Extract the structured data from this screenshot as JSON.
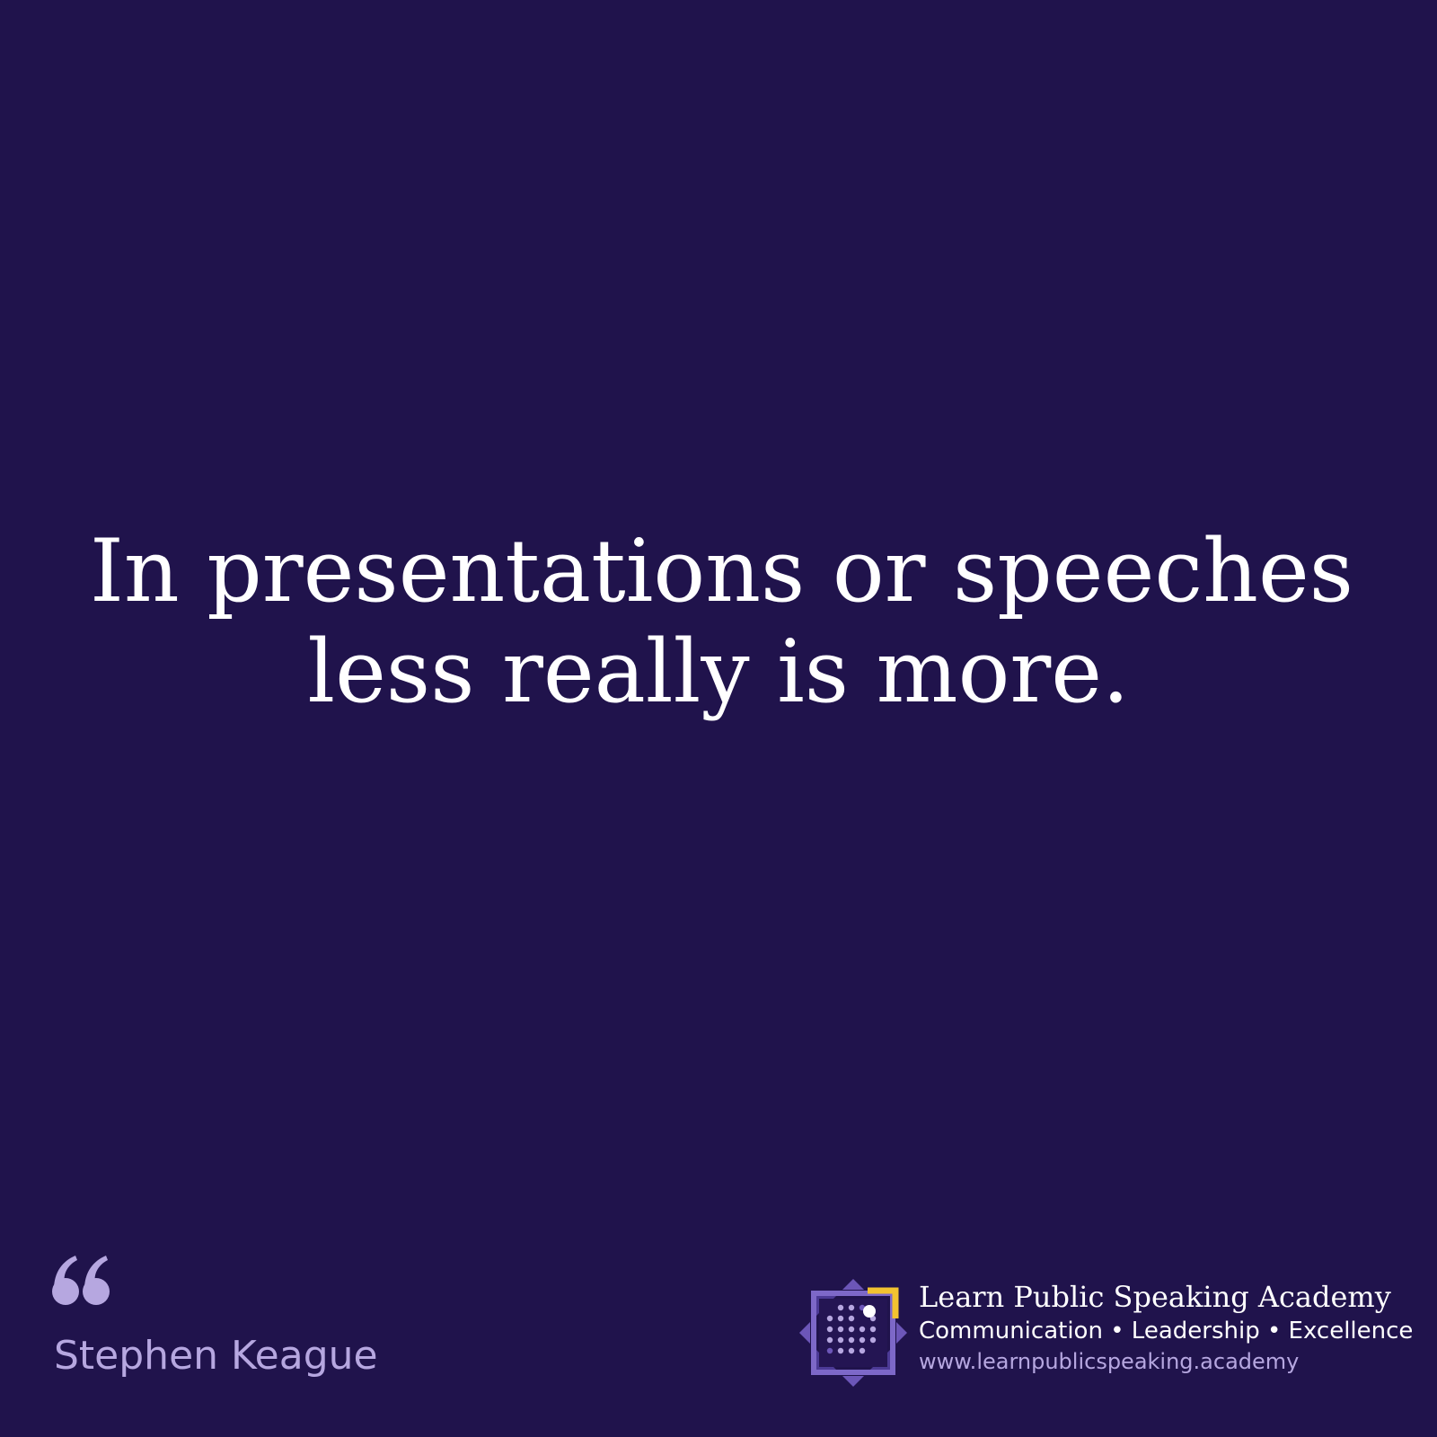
{
  "quote": {
    "line1": "In presentations or speeches",
    "line2": "less really is more."
  },
  "author": "Stephen Keague",
  "brand": {
    "name": "Learn Public Speaking Academy",
    "tagline": "Communication • Leadership • Excellence",
    "url": "www.learnpublicspeaking.academy"
  },
  "colors": {
    "background": "#20134c",
    "text": "#ffffff",
    "accent_light": "#b6a7e0",
    "accent_yellow": "#f2c230",
    "logo_purple": "#6c56b8"
  },
  "icons": {
    "quote_mark": "quote-mark-icon",
    "logo": "academy-logo-icon"
  }
}
